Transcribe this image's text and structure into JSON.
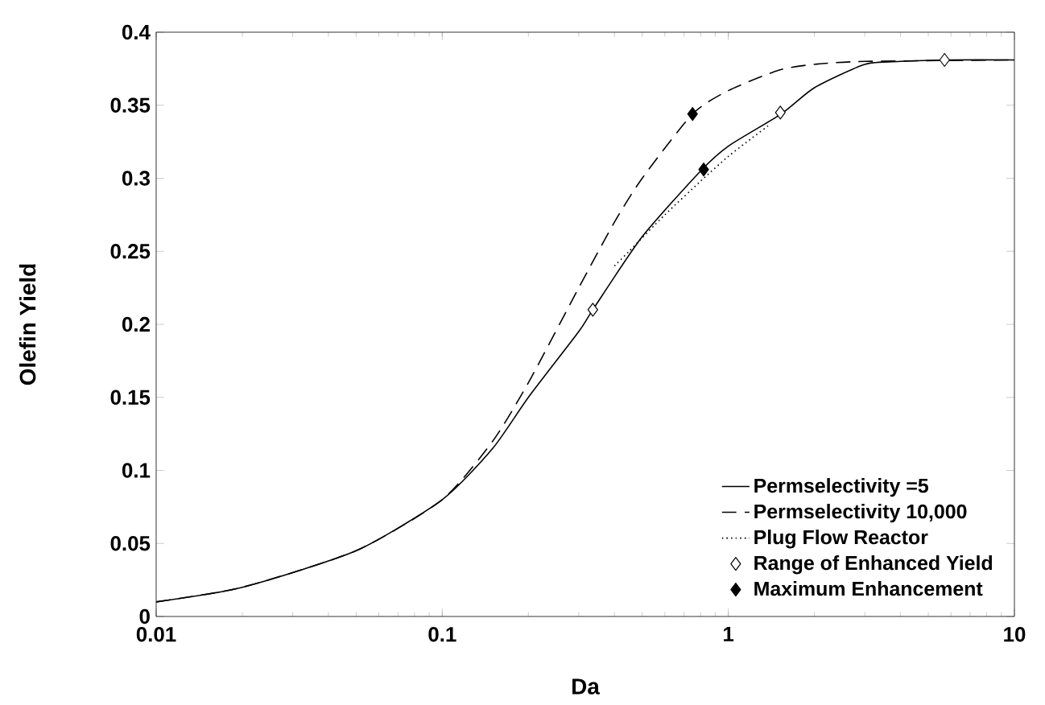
{
  "chart_data": {
    "type": "line",
    "xlabel": "Da",
    "ylabel": "Olefin Yield",
    "log": "x",
    "xlim": [
      0.01,
      10
    ],
    "ylim": [
      0,
      0.4
    ],
    "xticks": [
      0.01,
      0.1,
      1,
      10
    ],
    "yticks": [
      0,
      0.05,
      0.1,
      0.15,
      0.2,
      0.25,
      0.3,
      0.35,
      0.4
    ],
    "legend": "bottom right",
    "grid": false,
    "series": [
      {
        "name": "Permselectivity =5",
        "type": "line",
        "line_style": "solid",
        "color": "#000000",
        "x": [
          0.01,
          0.02,
          0.05,
          0.1,
          0.15,
          0.2,
          0.3,
          0.336,
          0.5,
          0.8,
          1.0,
          1.53,
          2,
          3,
          4,
          5.8,
          10
        ],
        "values": [
          0.01,
          0.02,
          0.045,
          0.08,
          0.115,
          0.15,
          0.195,
          0.21,
          0.26,
          0.305,
          0.322,
          0.344,
          0.362,
          0.378,
          0.38,
          0.381,
          0.381
        ]
      },
      {
        "name": "Permselectivity 10,000",
        "type": "line",
        "line_style": "dashed",
        "color": "#000000",
        "x": [
          0.01,
          0.02,
          0.05,
          0.1,
          0.15,
          0.2,
          0.3,
          0.4,
          0.5,
          0.75,
          1,
          1.5,
          2,
          3,
          10
        ],
        "values": [
          0.01,
          0.02,
          0.045,
          0.08,
          0.12,
          0.16,
          0.225,
          0.27,
          0.3,
          0.344,
          0.36,
          0.374,
          0.378,
          0.38,
          0.381
        ]
      },
      {
        "name": "Plug Flow Reactor",
        "type": "line",
        "line_style": "dotted",
        "color": "#000000",
        "x": [
          0.4,
          0.45,
          0.6,
          0.8,
          1,
          1.2,
          1.4
        ],
        "values": [
          0.24,
          0.25,
          0.275,
          0.298,
          0.315,
          0.327,
          0.337
        ]
      },
      {
        "name": "Range of Enhanced Yield",
        "type": "scatter",
        "marker": "diamond",
        "color": "#ffffff",
        "x": [
          0.336,
          1.52,
          5.7
        ],
        "values": [
          0.21,
          0.345,
          0.381
        ]
      },
      {
        "name": "Maximum Enhancement",
        "type": "scatter",
        "marker": "diamond",
        "color": "#000000",
        "x": [
          0.75,
          0.82
        ],
        "values": [
          0.344,
          0.306
        ]
      }
    ]
  }
}
